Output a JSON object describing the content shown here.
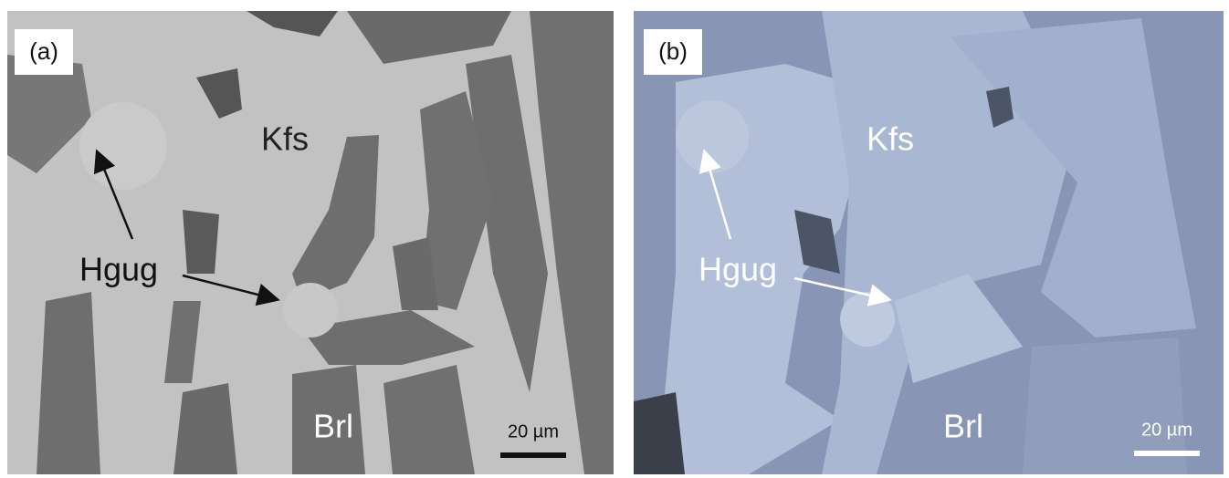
{
  "panels": [
    {
      "label": "(a)",
      "annotations": {
        "kfs": "Kfs",
        "hgug": "Hgug",
        "brl": "Brl"
      },
      "scale_bar": "20 µm"
    },
    {
      "label": "(b)",
      "annotations": {
        "kfs": "Kfs",
        "hgug": "Hgug",
        "brl": "Brl"
      },
      "scale_bar": "20 µm"
    }
  ]
}
